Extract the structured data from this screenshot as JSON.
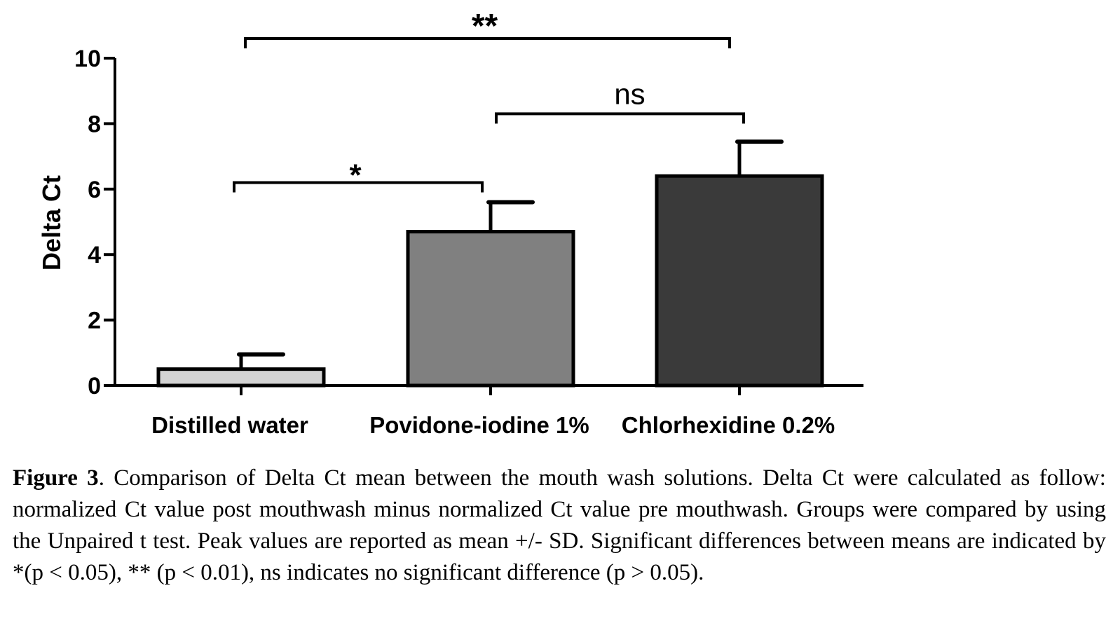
{
  "chart_data": {
    "type": "bar",
    "categories": [
      "Distilled water",
      "Povidone-iodine 1%",
      "Chlorhexidine 0.2%"
    ],
    "values": [
      0.5,
      4.7,
      6.4
    ],
    "error_sd": [
      0.45,
      0.9,
      1.05
    ],
    "colors": [
      "#d3d3d3",
      "#808080",
      "#3a3a3a"
    ],
    "ylabel": "Delta Ct",
    "ylim": [
      0,
      10
    ],
    "yticks": [
      0,
      2,
      4,
      6,
      8,
      10
    ],
    "ytick_labels": [
      "0",
      "2",
      "4",
      "6",
      "8",
      "10"
    ],
    "grid": false,
    "legend": "none",
    "significance": [
      {
        "from": 0,
        "to": 1,
        "label": "*",
        "level": 6.2
      },
      {
        "from": 1,
        "to": 2,
        "label": "ns",
        "level": 8.3
      },
      {
        "from": 0,
        "to": 2,
        "label": "**",
        "level": 10.6
      }
    ]
  },
  "caption": {
    "figure_label": "Figure 3",
    "text": ". Comparison of Delta Ct mean between the mouth wash solutions. Delta Ct were calculated as follow: normalized Ct value post mouthwash minus normalized Ct value pre mouthwash.  Groups were compared by using the Unpaired t test. Peak values are reported as mean +/- SD. Significant differences between means are indicated by *(p < 0.05), ** (p < 0.01), ns indicates no significant difference (p > 0.05)."
  }
}
